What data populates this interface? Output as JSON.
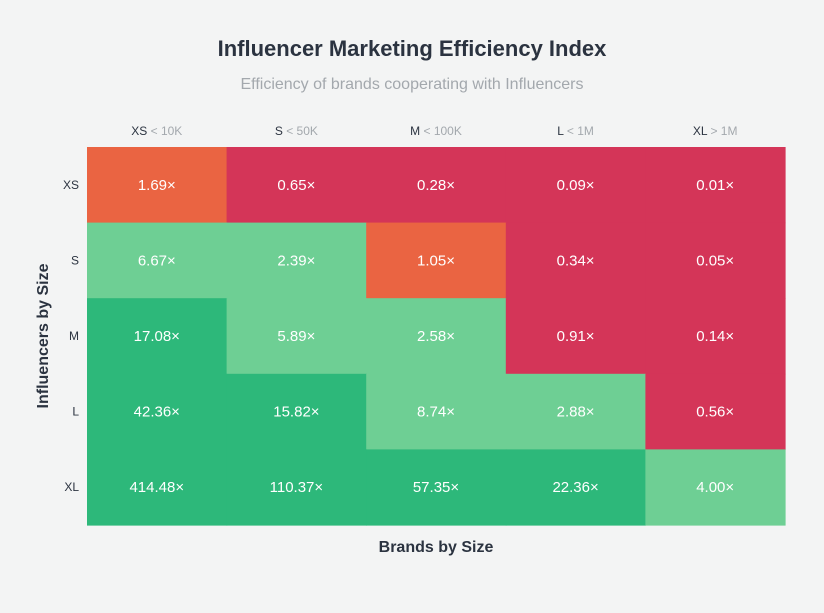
{
  "chart_data": {
    "type": "heatmap",
    "title": "Influencer Marketing Efficiency Index",
    "subtitle": "Efficiency of brands cooperating with Influencers",
    "xlabel": "Brands by Size",
    "ylabel": "Influencers by Size",
    "columns": [
      {
        "label": "XS",
        "range": "< 10K"
      },
      {
        "label": "S",
        "range": "< 50K"
      },
      {
        "label": "M",
        "range": "< 100K"
      },
      {
        "label": "L",
        "range": "< 1M"
      },
      {
        "label": "XL",
        "range": "> 1M"
      }
    ],
    "rows": [
      "XS",
      "S",
      "M",
      "L",
      "XL"
    ],
    "values": [
      [
        1.69,
        0.65,
        0.28,
        0.09,
        0.01
      ],
      [
        6.67,
        2.39,
        1.05,
        0.34,
        0.05
      ],
      [
        17.08,
        5.89,
        2.58,
        0.91,
        0.14
      ],
      [
        42.36,
        15.82,
        8.74,
        2.88,
        0.56
      ],
      [
        414.48,
        110.37,
        57.35,
        22.36,
        4.0
      ]
    ],
    "value_suffix": "×",
    "color_scale": [
      {
        "max": 1,
        "color": "#d43558"
      },
      {
        "max": 2,
        "color": "#ea6442"
      },
      {
        "max": 10,
        "color": "#6ecf94"
      },
      {
        "max": 1000000,
        "color": "#2db87a"
      }
    ],
    "cell_text_color": "#ffffff",
    "axis_text_color": "#2b3340",
    "range_text_color": "#a3a8ad"
  }
}
